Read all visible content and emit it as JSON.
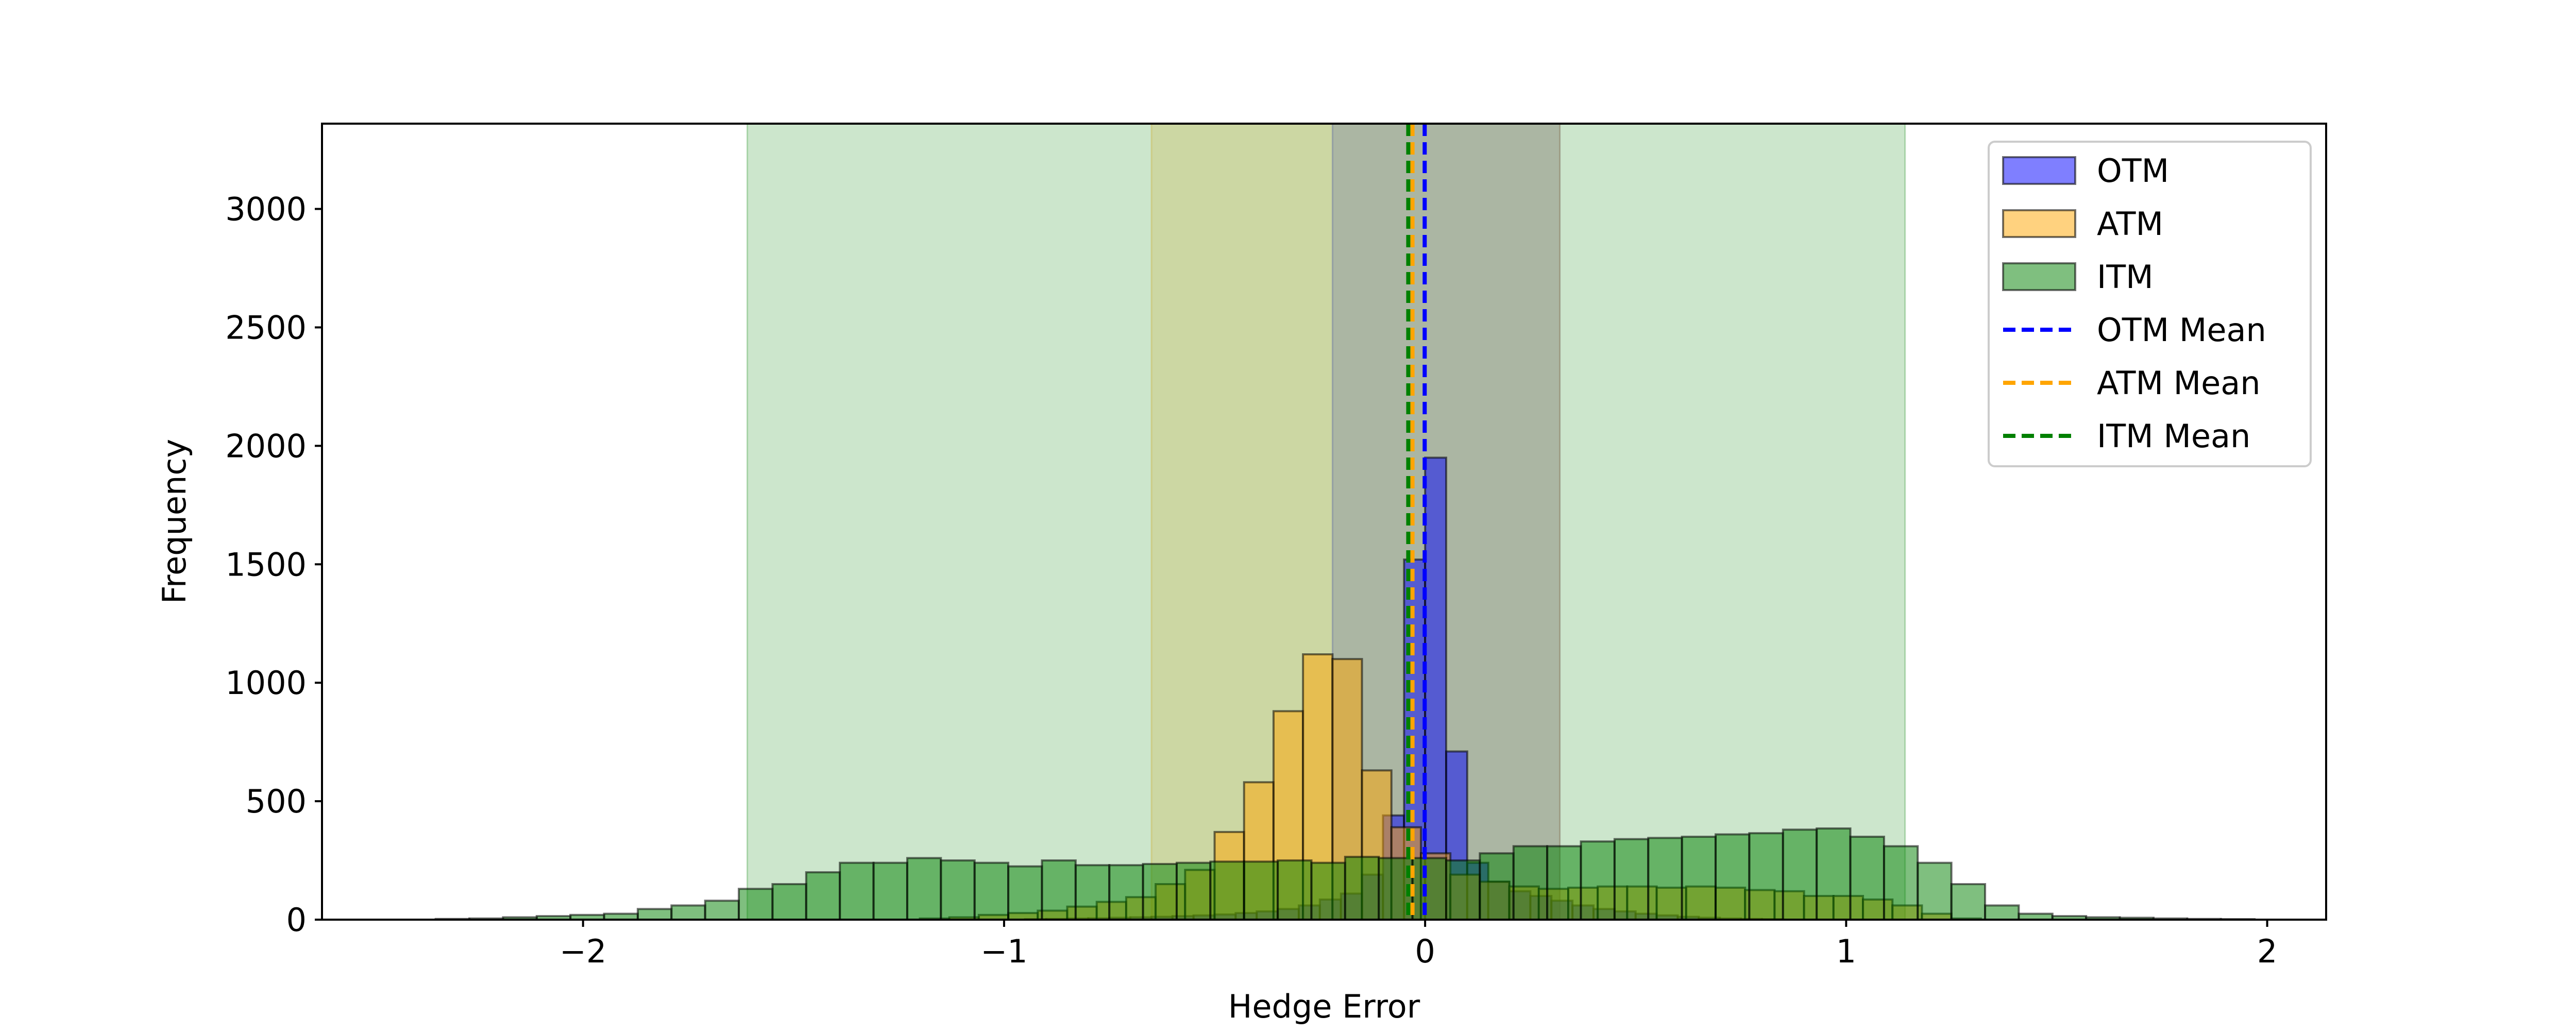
{
  "chart_data": {
    "type": "histogram",
    "title": "",
    "xlabel": "Hedge Error",
    "ylabel": "Frequency",
    "xlim": [
      -2.62,
      2.14
    ],
    "ylim": [
      0,
      3360
    ],
    "x_ticks": [
      {
        "value": -2,
        "label": "−2"
      },
      {
        "value": -1,
        "label": "−1"
      },
      {
        "value": 0,
        "label": "0"
      },
      {
        "value": 1,
        "label": "1"
      },
      {
        "value": 2,
        "label": "2"
      }
    ],
    "y_ticks": [
      {
        "value": 0,
        "label": "0"
      },
      {
        "value": 500,
        "label": "500"
      },
      {
        "value": 1000,
        "label": "1000"
      },
      {
        "value": 1500,
        "label": "1500"
      },
      {
        "value": 2000,
        "label": "2000"
      },
      {
        "value": 2500,
        "label": "2500"
      },
      {
        "value": 3000,
        "label": "3000"
      }
    ],
    "grid": false,
    "legend_position": "top-right",
    "series": [
      {
        "name": "OTM",
        "color": "#0000ff",
        "bins": [
          -0.95,
          -0.9,
          -0.85,
          -0.8,
          -0.75,
          -0.7,
          -0.65,
          -0.6,
          -0.55,
          -0.5,
          -0.45,
          -0.4,
          -0.35,
          -0.3,
          -0.25,
          -0.2,
          -0.15,
          -0.1,
          -0.05,
          0.0,
          0.05,
          0.1,
          0.15,
          0.2,
          0.25,
          0.3,
          0.35,
          0.4,
          0.45,
          0.5,
          0.55,
          0.6,
          0.65,
          0.7,
          0.75,
          0.8
        ],
        "counts": [
          2,
          3,
          5,
          6,
          8,
          10,
          12,
          15,
          18,
          22,
          28,
          35,
          45,
          60,
          85,
          110,
          190,
          440,
          1520,
          1950,
          710,
          240,
          160,
          120,
          100,
          80,
          60,
          45,
          35,
          25,
          18,
          12,
          8,
          5,
          3,
          2
        ],
        "mean": -0.001,
        "band": [
          -0.22,
          0.32
        ]
      },
      {
        "name": "ATM",
        "color": "#ffa500",
        "bins": [
          -1.2,
          -1.13,
          -1.06,
          -0.99,
          -0.92,
          -0.85,
          -0.78,
          -0.71,
          -0.64,
          -0.57,
          -0.5,
          -0.43,
          -0.36,
          -0.29,
          -0.22,
          -0.15,
          -0.08,
          -0.01,
          0.06,
          0.13,
          0.2,
          0.27,
          0.34,
          0.41,
          0.48,
          0.55,
          0.62,
          0.69,
          0.76,
          0.83,
          0.9,
          0.97,
          1.04,
          1.11,
          1.18,
          1.25
        ],
        "counts": [
          5,
          10,
          20,
          28,
          38,
          55,
          75,
          95,
          150,
          210,
          370,
          580,
          880,
          1120,
          1100,
          630,
          390,
          280,
          190,
          160,
          140,
          130,
          135,
          140,
          140,
          135,
          140,
          135,
          125,
          120,
          100,
          100,
          85,
          60,
          25,
          5
        ],
        "mean": -0.03,
        "band": [
          -0.65,
          0.32
        ]
      },
      {
        "name": "ITM",
        "color": "#008000",
        "bins": [
          -2.35,
          -2.27,
          -2.19,
          -2.11,
          -2.03,
          -1.95,
          -1.87,
          -1.79,
          -1.71,
          -1.63,
          -1.55,
          -1.47,
          -1.39,
          -1.31,
          -1.23,
          -1.15,
          -1.07,
          -0.99,
          -0.91,
          -0.83,
          -0.75,
          -0.67,
          -0.59,
          -0.51,
          -0.43,
          -0.35,
          -0.27,
          -0.19,
          -0.11,
          -0.03,
          0.05,
          0.13,
          0.21,
          0.29,
          0.37,
          0.45,
          0.53,
          0.61,
          0.69,
          0.77,
          0.85,
          0.93,
          1.01,
          1.09,
          1.17,
          1.25,
          1.33,
          1.41,
          1.49,
          1.57,
          1.65,
          1.73,
          1.81,
          1.89
        ],
        "counts": [
          3,
          5,
          10,
          15,
          20,
          25,
          45,
          60,
          80,
          130,
          150,
          200,
          240,
          240,
          260,
          250,
          240,
          225,
          250,
          230,
          230,
          235,
          240,
          245,
          245,
          250,
          240,
          265,
          260,
          260,
          250,
          280,
          310,
          310,
          330,
          340,
          345,
          350,
          360,
          365,
          380,
          385,
          350,
          310,
          240,
          150,
          60,
          25,
          15,
          10,
          8,
          5,
          3,
          2
        ],
        "mean": -0.04,
        "band": [
          -1.61,
          1.14
        ]
      }
    ],
    "legend": [
      {
        "label": "OTM",
        "kind": "patch",
        "color": "#0000ff"
      },
      {
        "label": "ATM",
        "kind": "patch",
        "color": "#ffa500"
      },
      {
        "label": "ITM",
        "kind": "patch",
        "color": "#008000"
      },
      {
        "label": "OTM Mean",
        "kind": "dashed-line",
        "color": "#0000ff"
      },
      {
        "label": "ATM Mean",
        "kind": "dashed-line",
        "color": "#ffa500"
      },
      {
        "label": "ITM Mean",
        "kind": "dashed-line",
        "color": "#008000"
      }
    ]
  }
}
